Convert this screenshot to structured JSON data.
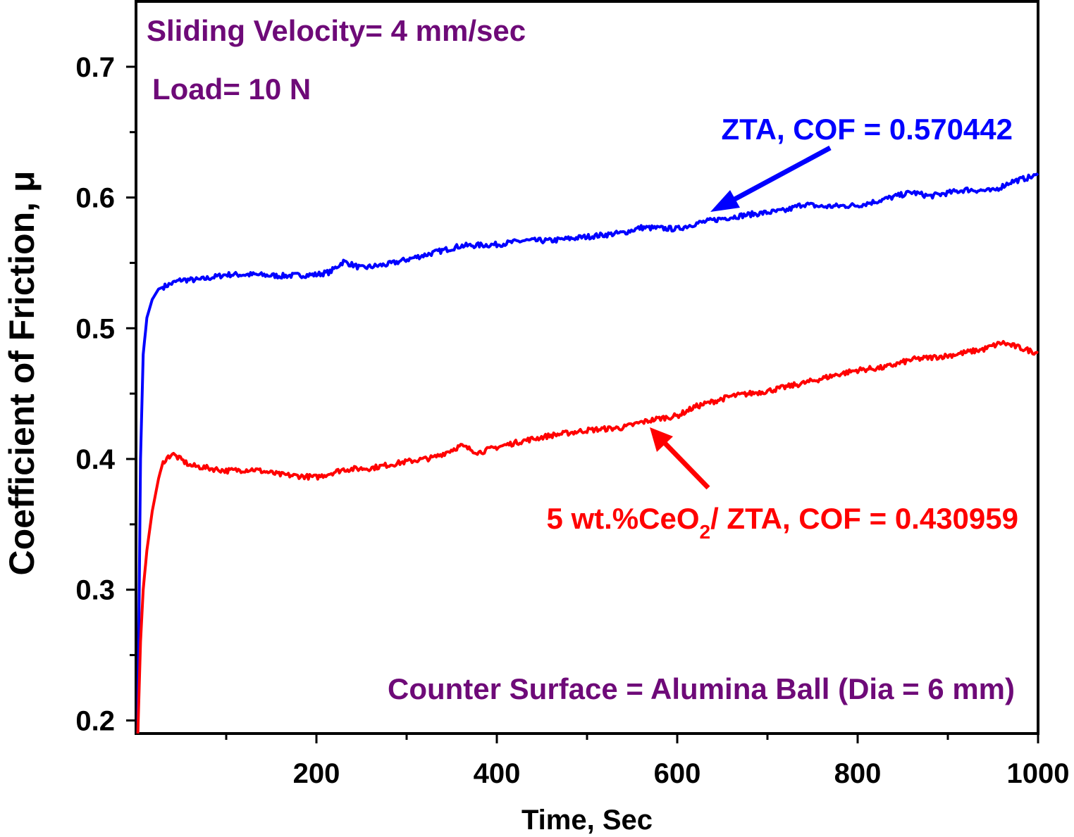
{
  "chart_data": {
    "type": "line",
    "xlabel": "Time, Sec",
    "ylabel": "Coefficient of Friction, μ",
    "xlim": [
      0,
      1000
    ],
    "ylim": [
      0.19,
      0.75
    ],
    "x_ticks": [
      200,
      400,
      600,
      800,
      1000
    ],
    "y_ticks": [
      0.2,
      0.3,
      0.4,
      0.5,
      0.6,
      0.7
    ],
    "x_tick_labels": [
      "200",
      "400",
      "600",
      "800",
      "1000"
    ],
    "y_tick_labels": [
      "0.2",
      "0.3",
      "0.4",
      "0.5",
      "0.6",
      "0.7"
    ],
    "grid": false,
    "series": [
      {
        "color": "#0000ff",
        "x": [
          2,
          5,
          8,
          12,
          18,
          25,
          35,
          50,
          70,
          100,
          130,
          160,
          200,
          215,
          230,
          250,
          280,
          320,
          360,
          400,
          430,
          460,
          500,
          540,
          560,
          600,
          620,
          650,
          680,
          720,
          740,
          760,
          800,
          820,
          860,
          880,
          920,
          950,
          970,
          1000
        ],
        "y": [
          0.19,
          0.4,
          0.48,
          0.508,
          0.522,
          0.53,
          0.533,
          0.537,
          0.537,
          0.541,
          0.541,
          0.54,
          0.541,
          0.543,
          0.551,
          0.546,
          0.549,
          0.556,
          0.563,
          0.564,
          0.567,
          0.567,
          0.57,
          0.573,
          0.577,
          0.576,
          0.58,
          0.584,
          0.587,
          0.59,
          0.595,
          0.593,
          0.594,
          0.597,
          0.604,
          0.601,
          0.606,
          0.605,
          0.612,
          0.617
        ]
      },
      {
        "color": "#ff0000",
        "x": [
          2,
          5,
          8,
          12,
          18,
          25,
          30,
          40,
          60,
          80,
          100,
          130,
          160,
          200,
          230,
          260,
          300,
          330,
          360,
          380,
          400,
          430,
          460,
          500,
          540,
          560,
          580,
          600,
          620,
          660,
          700,
          740,
          780,
          800,
          830,
          860,
          900,
          940,
          960,
          1000
        ],
        "y": [
          0.19,
          0.26,
          0.3,
          0.33,
          0.36,
          0.385,
          0.398,
          0.404,
          0.395,
          0.393,
          0.391,
          0.392,
          0.388,
          0.386,
          0.392,
          0.393,
          0.398,
          0.401,
          0.41,
          0.405,
          0.409,
          0.414,
          0.418,
          0.422,
          0.424,
          0.428,
          0.431,
          0.433,
          0.44,
          0.448,
          0.452,
          0.458,
          0.465,
          0.468,
          0.47,
          0.476,
          0.479,
          0.484,
          0.489,
          0.481
        ]
      }
    ],
    "annotations": {
      "velocity": "Sliding Velocity= 4 mm/sec",
      "load": "Load= 10 N",
      "counter_surface": "Counter Surface = Alumina Ball (Dia = 6 mm)",
      "zta_label": "ZTA, COF = 0.570442",
      "ceo2_label_prefix": "5 wt.%CeO",
      "ceo2_label_sub": "2",
      "ceo2_label_suffix": "/ ZTA, COF = 0.430959"
    },
    "colors": {
      "annotation_purple": "#6e0a78",
      "zta_blue": "#0000ff",
      "ceo2_red": "#ff0000",
      "axis_black": "#000000"
    }
  }
}
